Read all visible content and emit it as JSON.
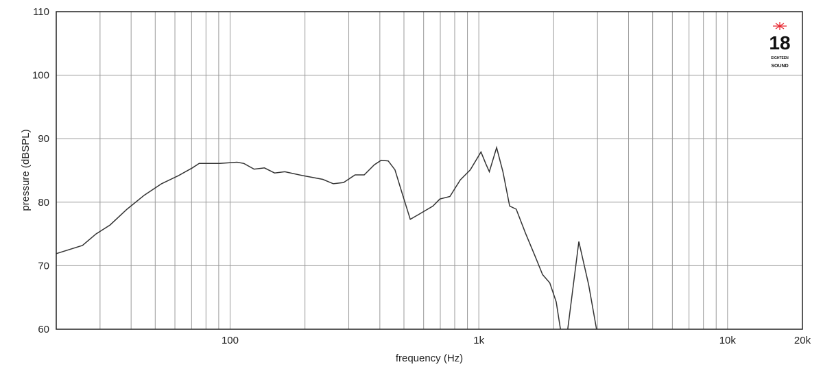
{
  "chart_data": {
    "type": "line",
    "title": "",
    "xlabel": "frequency (Hz)",
    "ylabel": "pressure (dBSPL)",
    "xscale": "log",
    "xlim": [
      20,
      20000
    ],
    "ylim": [
      60,
      110
    ],
    "grid": true,
    "x_tick_labels": [
      {
        "value": 100,
        "label": "100"
      },
      {
        "value": 1000,
        "label": "1k"
      },
      {
        "value": 10000,
        "label": "10k"
      },
      {
        "value": 20000,
        "label": "20k"
      }
    ],
    "y_ticks": [
      60,
      70,
      80,
      90,
      100,
      110
    ],
    "line_color": "#333333",
    "series": [
      {
        "points": [
          [
            20,
            71.9
          ],
          [
            25.5,
            73.2
          ],
          [
            28.9,
            75.0
          ],
          [
            32.9,
            76.4
          ],
          [
            38.5,
            78.9
          ],
          [
            45.2,
            81.1
          ],
          [
            53,
            82.9
          ],
          [
            62.1,
            84.2
          ],
          [
            70.5,
            85.4
          ],
          [
            75.1,
            86.1
          ],
          [
            80,
            86.1
          ],
          [
            90.9,
            86.1
          ],
          [
            106.6,
            86.3
          ],
          [
            113.6,
            86.1
          ],
          [
            124.9,
            85.2
          ],
          [
            137.4,
            85.4
          ],
          [
            151,
            84.6
          ],
          [
            166,
            84.8
          ],
          [
            195,
            84.2
          ],
          [
            236,
            83.6
          ],
          [
            260,
            82.9
          ],
          [
            286,
            83.1
          ],
          [
            318,
            84.3
          ],
          [
            346,
            84.3
          ],
          [
            380,
            85.9
          ],
          [
            405,
            86.6
          ],
          [
            432,
            86.5
          ],
          [
            460,
            85.1
          ],
          [
            490,
            81.6
          ],
          [
            530,
            77.3
          ],
          [
            575,
            78.1
          ],
          [
            654,
            79.4
          ],
          [
            697,
            80.5
          ],
          [
            765,
            80.9
          ],
          [
            842,
            83.5
          ],
          [
            924,
            85.1
          ],
          [
            1020,
            87.9
          ],
          [
            1068,
            86.0
          ],
          [
            1102,
            84.8
          ],
          [
            1179,
            88.6
          ],
          [
            1250,
            84.8
          ],
          [
            1330,
            79.4
          ],
          [
            1414,
            78.9
          ],
          [
            1541,
            75.1
          ],
          [
            1692,
            71.3
          ],
          [
            1804,
            68.6
          ],
          [
            1928,
            67.3
          ],
          [
            2047,
            64.3
          ],
          [
            2129,
            60
          ],
          null,
          [
            2278,
            60
          ],
          [
            2524,
            73.8
          ],
          [
            2764,
            67.0
          ],
          [
            2973,
            60
          ]
        ]
      }
    ]
  },
  "logo": {
    "text": "18",
    "subtext": "EIGHTEEN",
    "brand": "SOUND",
    "accent": "#e8202a"
  }
}
